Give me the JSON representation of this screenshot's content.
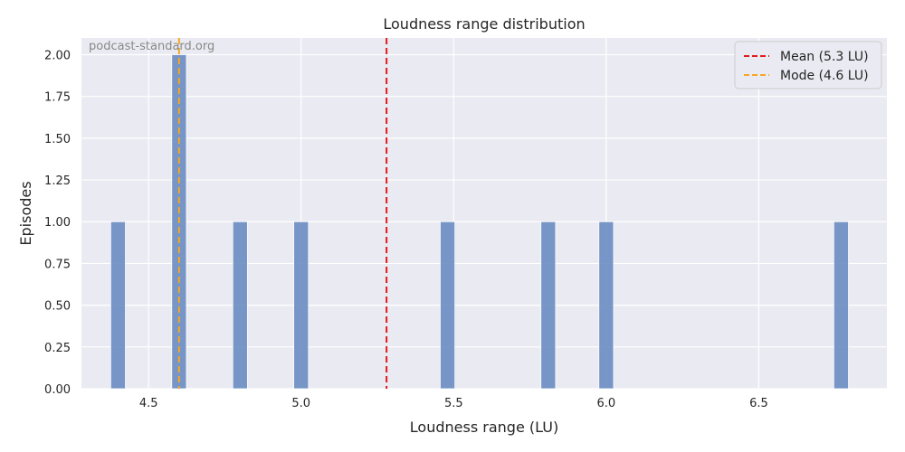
{
  "chart_data": {
    "type": "bar",
    "title": "Loudness range distribution",
    "xlabel": "Loudness range (LU)",
    "ylabel": "Episodes",
    "xlim": [
      4.28,
      6.92
    ],
    "ylim": [
      0,
      2.1
    ],
    "xticks": [
      4.5,
      5.0,
      5.5,
      6.0,
      6.5
    ],
    "xtick_labels": [
      "4.5",
      "5.0",
      "5.5",
      "6.0",
      "6.5"
    ],
    "yticks": [
      0,
      0.25,
      0.5,
      0.75,
      1.0,
      1.25,
      1.5,
      1.75,
      2.0
    ],
    "ytick_labels": [
      "0.00",
      "0.25",
      "0.50",
      "0.75",
      "1.00",
      "1.25",
      "1.50",
      "1.75",
      "2.00"
    ],
    "bin_width": 0.048,
    "bars": [
      {
        "x": 4.4,
        "count": 1
      },
      {
        "x": 4.6,
        "count": 2
      },
      {
        "x": 4.8,
        "count": 1
      },
      {
        "x": 5.0,
        "count": 1
      },
      {
        "x": 5.48,
        "count": 1
      },
      {
        "x": 5.81,
        "count": 1
      },
      {
        "x": 6.0,
        "count": 1
      },
      {
        "x": 6.77,
        "count": 1
      }
    ],
    "reference_lines": [
      {
        "label": "Mean (5.3 LU)",
        "x": 5.28,
        "color": "#e31a1c",
        "style": "dashed"
      },
      {
        "label": "Mode (4.6 LU)",
        "x": 4.6,
        "color": "#f5a623",
        "style": "dashed"
      }
    ],
    "bar_color": "#6b8cc2",
    "background_color": "#eaeaf2",
    "grid": true,
    "legend_position": "top-right",
    "watermark": "podcast-standard.org"
  }
}
